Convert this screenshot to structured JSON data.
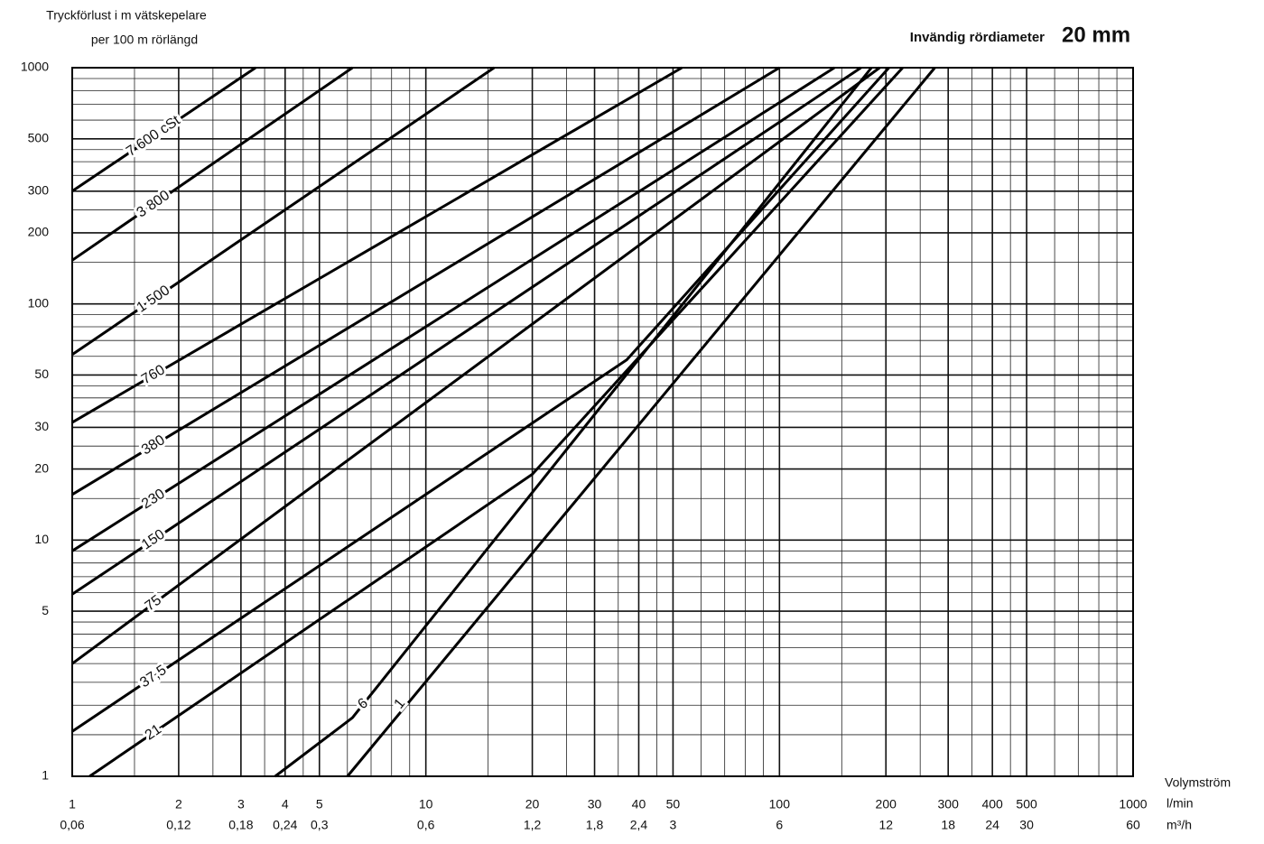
{
  "chart_data": {
    "type": "line",
    "title": "Invändig rördiameter",
    "diameter": "20 mm",
    "ylabel": [
      "Tryckförlust i m vätskepelare",
      "per 100 m rörlängd"
    ],
    "xlabel": "Volymström",
    "x_unit": "l/min",
    "x2_unit": "m³/h",
    "xscale": "log",
    "yscale": "log",
    "grid": true,
    "xlim": [
      1,
      1000
    ],
    "ylim": [
      1,
      1000
    ],
    "x2lim": [
      0.06,
      60
    ],
    "xticks": [
      1,
      2,
      3,
      4,
      5,
      10,
      20,
      30,
      40,
      50,
      100,
      200,
      300,
      400,
      500,
      1000
    ],
    "x2ticks": [
      {
        "value": 0.06,
        "label": "0,06"
      },
      {
        "value": 0.12,
        "label": "0,12"
      },
      {
        "value": 0.18,
        "label": "0,18"
      },
      {
        "value": 0.24,
        "label": "0,24"
      },
      {
        "value": 0.3,
        "label": "0,3"
      },
      {
        "value": 0.6,
        "label": "0,6"
      },
      {
        "value": 1.2,
        "label": "1,2"
      },
      {
        "value": 1.8,
        "label": "1,8"
      },
      {
        "value": 2.4,
        "label": "2,4"
      },
      3,
      6,
      12,
      18,
      24,
      30,
      60
    ],
    "yticks": [
      1,
      5,
      10,
      20,
      30,
      50,
      100,
      200,
      300,
      500,
      1000
    ],
    "series": [
      {
        "name": "7 600 cSt",
        "color": "#000",
        "x": [
          1,
          3.3
        ],
        "values": [
          300,
          1000
        ]
      },
      {
        "name": "3 800",
        "color": "#000",
        "x": [
          1,
          6.2
        ],
        "values": [
          153,
          1000
        ]
      },
      {
        "name": "1 500",
        "color": "#000",
        "x": [
          1,
          15.6
        ],
        "values": [
          61,
          1000
        ]
      },
      {
        "name": "760",
        "color": "#000",
        "x": [
          1,
          53
        ],
        "values": [
          31.5,
          1000
        ]
      },
      {
        "name": "380",
        "color": "#000",
        "x": [
          1,
          100
        ],
        "values": [
          15.6,
          1000
        ]
      },
      {
        "name": "230",
        "color": "#000",
        "x": [
          1,
          143
        ],
        "values": [
          9,
          1000
        ]
      },
      {
        "name": "150",
        "color": "#000",
        "x": [
          1,
          170
        ],
        "values": [
          5.9,
          1000
        ]
      },
      {
        "name": "75",
        "color": "#000",
        "x": [
          1,
          192
        ],
        "values": [
          3,
          1000
        ]
      },
      {
        "name": "37,5",
        "color": "#000",
        "x": [
          1,
          37,
          204
        ],
        "values": [
          1.55,
          58,
          1000
        ]
      },
      {
        "name": "21",
        "color": "#000",
        "x": [
          1.12,
          20,
          223
        ],
        "values": [
          1,
          19,
          1000
        ]
      },
      {
        "name": "6",
        "color": "#000",
        "x": [
          3.75,
          6.2,
          182
        ],
        "values": [
          1,
          1.77,
          1000
        ]
      },
      {
        "name": "1",
        "color": "#000",
        "x": [
          6,
          275
        ],
        "values": [
          1,
          1000
        ]
      }
    ]
  }
}
